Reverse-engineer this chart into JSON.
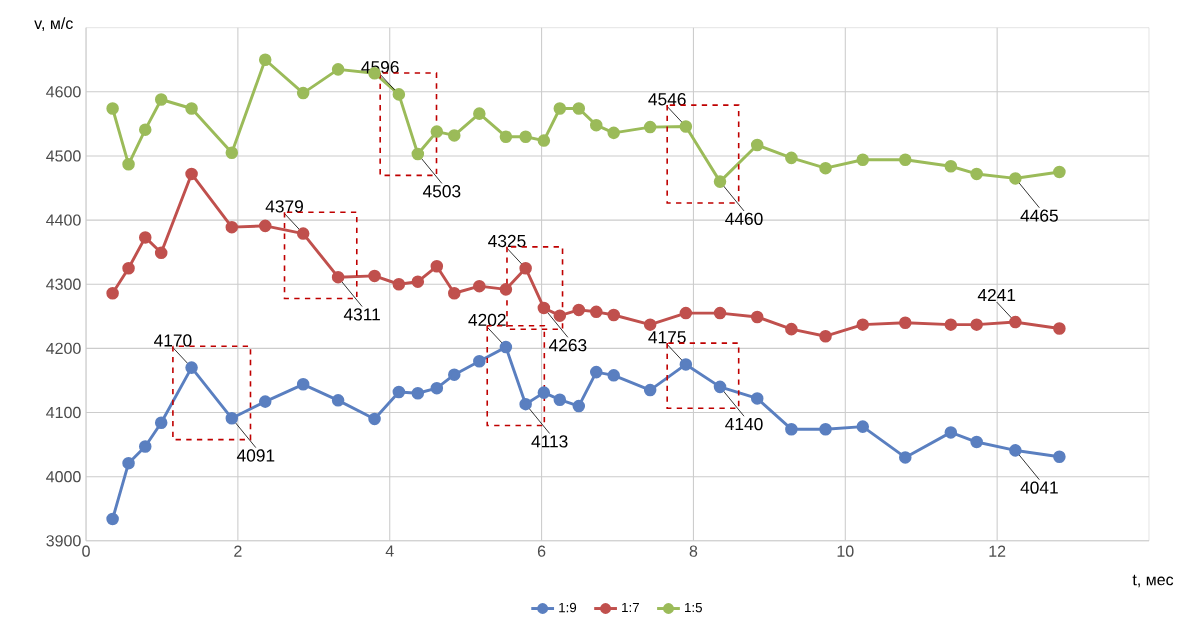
{
  "chart_data": {
    "type": "line",
    "xlabel": "t, мес",
    "ylabel": "v, м/с",
    "x": [
      0.35,
      0.56,
      0.78,
      0.99,
      1.39,
      1.92,
      2.36,
      2.86,
      3.32,
      3.8,
      4.12,
      4.37,
      4.62,
      4.85,
      5.18,
      5.53,
      5.79,
      6.03,
      6.24,
      6.49,
      6.72,
      6.95,
      7.43,
      7.9,
      8.35,
      8.84,
      9.29,
      9.74,
      10.23,
      10.79,
      11.39,
      11.73,
      12.24,
      12.82
    ],
    "series": [
      {
        "name": "1:9",
        "color": "#5a7fc0",
        "values": [
          3934,
          4021,
          4047,
          4084,
          4170,
          4091,
          4117,
          4144,
          4119,
          4090,
          4132,
          4130,
          4138,
          4159,
          4180,
          4202,
          4113,
          4131,
          4120,
          4110,
          4163,
          4158,
          4135,
          4175,
          4140,
          4122,
          4074,
          4074,
          4078,
          4030,
          4069,
          4054,
          4041,
          4031
        ],
        "value_labels": [
          null,
          null,
          null,
          null,
          "4170",
          "4091",
          null,
          null,
          null,
          null,
          null,
          null,
          null,
          null,
          null,
          "4202",
          "4113",
          null,
          null,
          null,
          null,
          null,
          null,
          "4175",
          "4140",
          null,
          null,
          null,
          null,
          null,
          null,
          null,
          "4041",
          null
        ]
      },
      {
        "name": "1:7",
        "color": "#c0504d",
        "values": [
          4286,
          4325,
          4373,
          4349,
          4472,
          4389,
          4391,
          4379,
          4311,
          4313,
          4300,
          4304,
          4328,
          4286,
          4297,
          4292,
          4325,
          4263,
          4251,
          4260,
          4257,
          4252,
          4237,
          4255,
          4255,
          4249,
          4230,
          4219,
          4237,
          4240,
          4237,
          4237,
          4241,
          4231
        ],
        "value_labels": [
          null,
          null,
          null,
          null,
          null,
          null,
          null,
          "4379",
          "4311",
          null,
          null,
          null,
          null,
          null,
          null,
          null,
          "4325",
          "4263",
          null,
          null,
          null,
          null,
          null,
          null,
          null,
          null,
          null,
          null,
          null,
          null,
          null,
          null,
          "4241",
          null
        ]
      },
      {
        "name": "1:5",
        "color": "#9bbb59",
        "values": [
          4574,
          4487,
          4541,
          4588,
          4574,
          4505,
          4650,
          4598,
          4635,
          4629,
          4596,
          4503,
          4538,
          4532,
          4566,
          4530,
          4530,
          4524,
          4574,
          4574,
          4548,
          4536,
          4545,
          4546,
          4460,
          4517,
          4497,
          4481,
          4494,
          4494,
          4484,
          4472,
          4465,
          4475
        ],
        "value_labels": [
          null,
          null,
          null,
          null,
          null,
          null,
          null,
          null,
          null,
          null,
          "4596",
          "4503",
          null,
          null,
          null,
          null,
          null,
          null,
          null,
          null,
          null,
          null,
          null,
          "4546",
          "4460",
          null,
          null,
          null,
          null,
          null,
          null,
          null,
          "4465",
          null
        ]
      }
    ],
    "xlim": [
      0,
      14
    ],
    "xticks": [
      0,
      2,
      4,
      6,
      8,
      10,
      12
    ],
    "ylim": [
      3900,
      4700
    ],
    "yticks": [
      3900,
      4000,
      4100,
      4200,
      4300,
      4400,
      4500,
      4600
    ],
    "grid": true,
    "legend": "bottom",
    "marker": "circle",
    "line_style": "solid"
  }
}
